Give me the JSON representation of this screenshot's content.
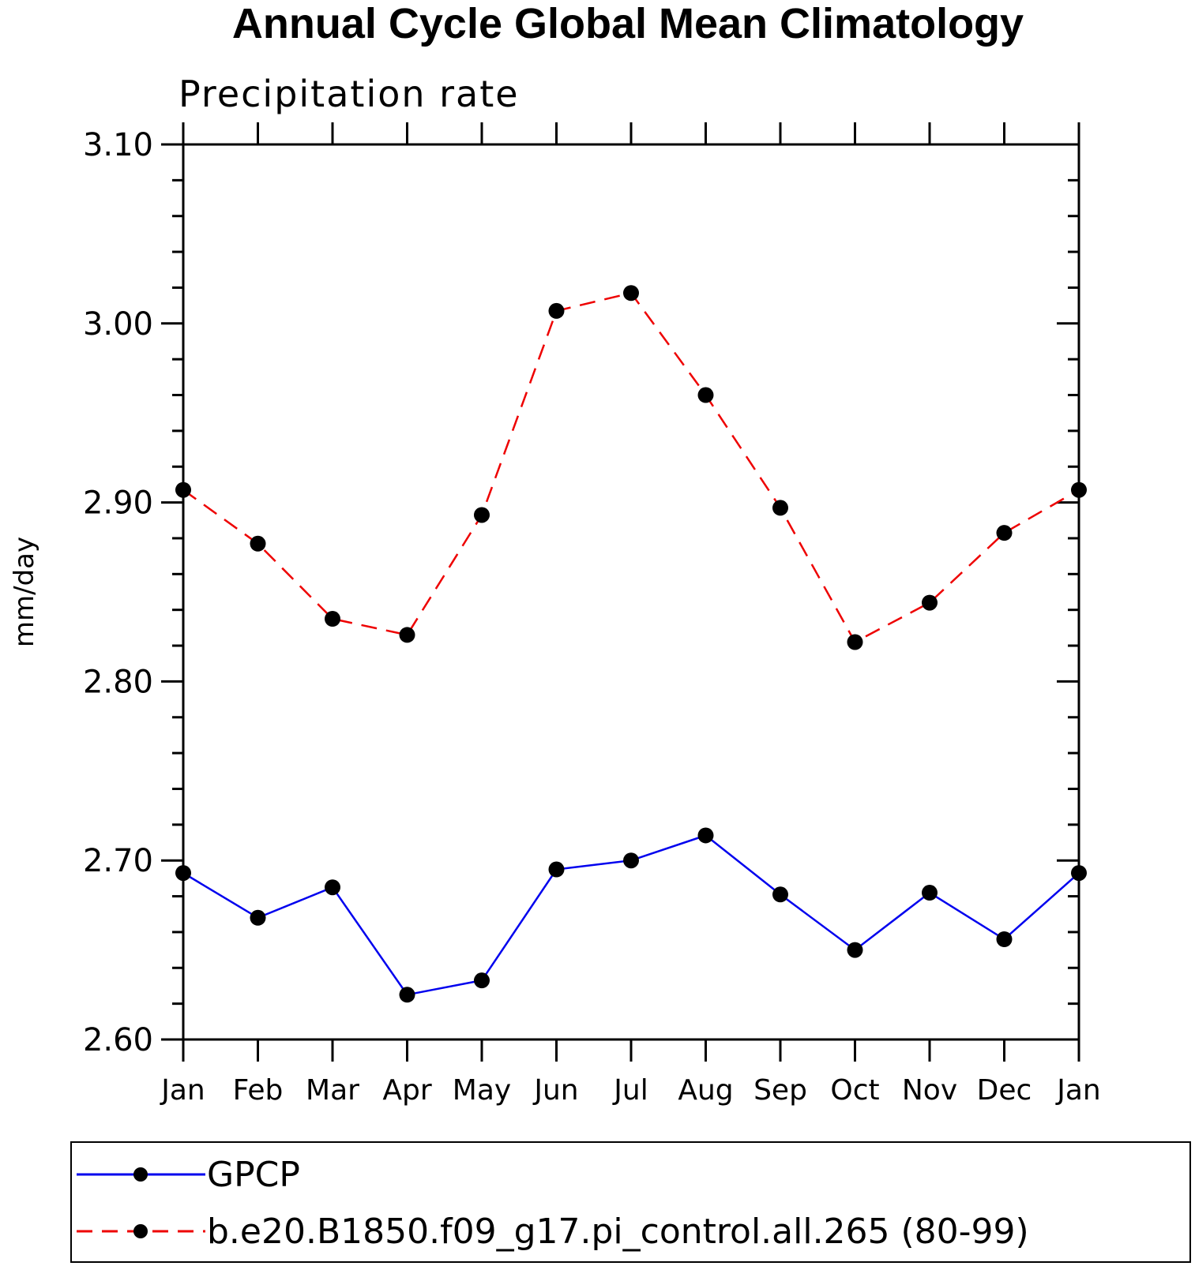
{
  "chart_data": {
    "type": "line",
    "title": "Annual Cycle Global Mean Climatology",
    "subtitle": "Precipitation rate",
    "ylabel": "mm/day",
    "xlabel": "",
    "categories": [
      "Jan",
      "Feb",
      "Mar",
      "Apr",
      "May",
      "Jun",
      "Jul",
      "Aug",
      "Sep",
      "Oct",
      "Nov",
      "Dec",
      "Jan"
    ],
    "ylim": [
      2.6,
      3.1
    ],
    "yticks": [
      "2.60",
      "2.70",
      "2.80",
      "2.90",
      "3.00",
      "3.10"
    ],
    "grid": false,
    "legend_position": "bottom",
    "series": [
      {
        "name": "GPCP",
        "color": "#0000ee",
        "line_style": "solid",
        "marker": "filled-circle",
        "values": [
          2.693,
          2.668,
          2.685,
          2.625,
          2.633,
          2.695,
          2.7,
          2.714,
          2.681,
          2.65,
          2.682,
          2.656,
          2.693
        ]
      },
      {
        "name": "b.e20.B1850.f09_g17.pi_control.all.265 (80-99)",
        "color": "#ee0000",
        "line_style": "dashed",
        "marker": "filled-circle",
        "values": [
          2.907,
          2.877,
          2.835,
          2.826,
          2.893,
          3.007,
          3.017,
          2.96,
          2.897,
          2.822,
          2.844,
          2.883,
          2.907
        ]
      }
    ]
  }
}
